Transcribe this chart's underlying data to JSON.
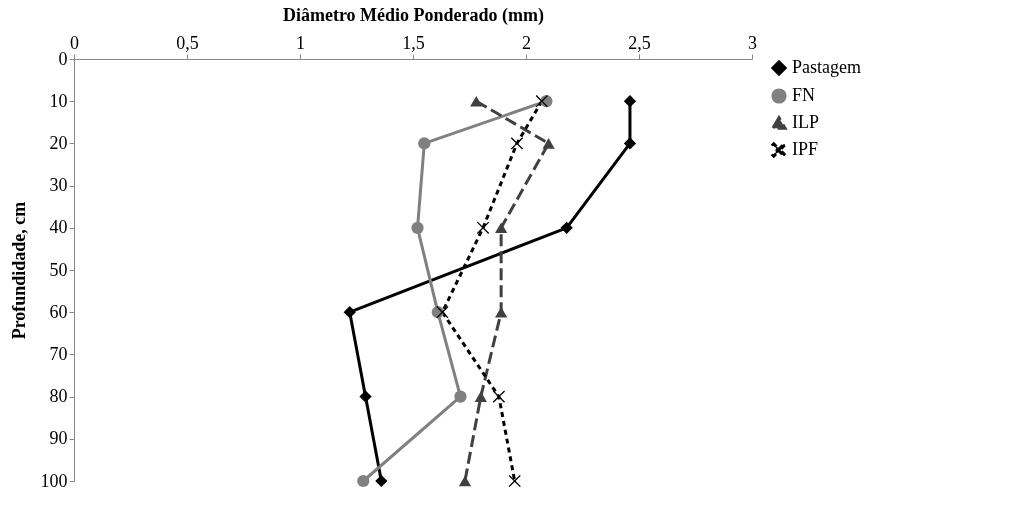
{
  "chart_data": {
    "type": "line",
    "xlabel": "Diâmetro Médio Ponderado (mm)",
    "ylabel": "Profundidade, cm",
    "xlim": [
      0,
      3
    ],
    "xticks": [
      0,
      {
        "value": 0.5,
        "label": "0,5"
      },
      1,
      {
        "value": 1.5,
        "label": "1,5"
      },
      2,
      {
        "value": 2.5,
        "label": "2,5"
      },
      3
    ],
    "ylim": [
      100,
      0
    ],
    "yticks": [
      0,
      10,
      20,
      30,
      40,
      50,
      60,
      70,
      80,
      90,
      100
    ],
    "grid": false,
    "legend": "right",
    "series": [
      {
        "name": "Pastagem",
        "color": "#000000",
        "marker": "diamond",
        "line_style": "solid",
        "x": [
          2.46,
          2.46,
          2.18,
          1.22,
          1.29,
          1.36
        ],
        "values": [
          10,
          20,
          40,
          60,
          80,
          100
        ]
      },
      {
        "name": "FN",
        "color": "#808080",
        "marker": "circle",
        "line_style": "solid",
        "x": [
          2.09,
          1.55,
          1.52,
          1.61,
          1.71,
          1.28
        ],
        "values": [
          10,
          20,
          40,
          60,
          80,
          100
        ]
      },
      {
        "name": "ILP",
        "color": "#404040",
        "marker": "triangle",
        "line_style": "dashed",
        "x": [
          1.78,
          2.1,
          1.89,
          1.89,
          1.8,
          1.73
        ],
        "values": [
          10,
          20,
          40,
          60,
          80,
          100
        ]
      },
      {
        "name": "IPF",
        "color": "#000000",
        "marker": "cross",
        "line_style": "dotted",
        "x": [
          2.07,
          1.96,
          1.81,
          1.63,
          1.88,
          1.95
        ],
        "values": [
          10,
          20,
          40,
          60,
          80,
          100
        ]
      }
    ]
  }
}
